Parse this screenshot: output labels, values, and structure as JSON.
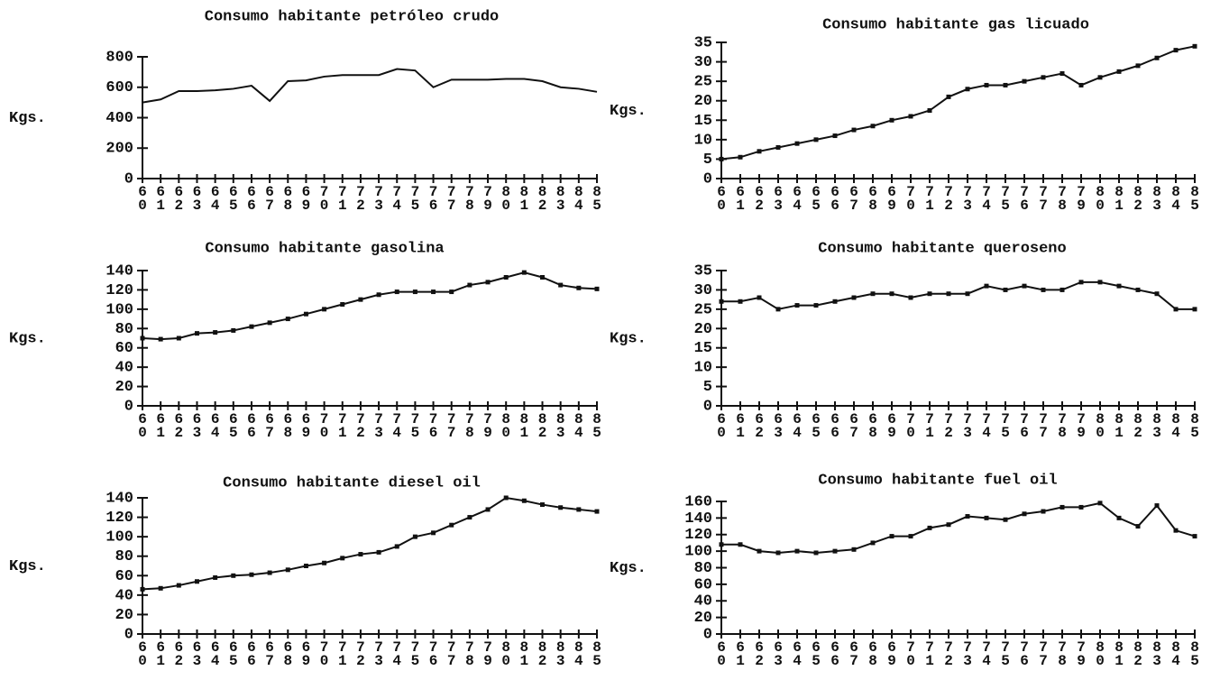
{
  "chart_data": [
    {
      "type": "line",
      "title": "Consumo habitante petróleo crudo",
      "ylabel": "Kgs.",
      "color": "#111111",
      "categories": [
        "60",
        "61",
        "62",
        "63",
        "64",
        "65",
        "66",
        "67",
        "68",
        "69",
        "70",
        "71",
        "72",
        "73",
        "74",
        "75",
        "76",
        "77",
        "78",
        "79",
        "80",
        "81",
        "82",
        "83",
        "84",
        "85"
      ],
      "values": [
        500,
        520,
        575,
        575,
        580,
        590,
        610,
        510,
        640,
        645,
        670,
        680,
        680,
        680,
        720,
        710,
        600,
        650,
        650,
        650,
        655,
        655,
        640,
        600,
        590,
        570
      ],
      "markers": false,
      "ylim": [
        0,
        800
      ],
      "yticks": [
        0,
        200,
        400,
        600,
        800
      ]
    },
    {
      "type": "line",
      "title": "Consumo habitante gas licuado",
      "ylabel": "Kgs.",
      "color": "#111111",
      "categories": [
        "60",
        "61",
        "62",
        "63",
        "64",
        "65",
        "66",
        "67",
        "68",
        "69",
        "70",
        "71",
        "72",
        "73",
        "74",
        "75",
        "76",
        "77",
        "78",
        "79",
        "80",
        "81",
        "82",
        "83",
        "84",
        "85"
      ],
      "values": [
        5,
        5.5,
        7,
        8,
        9,
        10,
        11,
        12.5,
        13.5,
        15,
        16,
        17.5,
        21,
        23,
        24,
        24,
        25,
        26,
        27,
        24,
        26,
        27.5,
        29,
        31,
        33,
        34
      ],
      "markers": true,
      "ylim": [
        0,
        35
      ],
      "yticks": [
        0,
        5,
        10,
        15,
        20,
        25,
        30,
        35
      ]
    },
    {
      "type": "line",
      "title": "Consumo habitante gasolina",
      "ylabel": "Kgs.",
      "color": "#111111",
      "categories": [
        "60",
        "61",
        "62",
        "63",
        "64",
        "65",
        "66",
        "67",
        "68",
        "69",
        "70",
        "71",
        "72",
        "73",
        "74",
        "75",
        "76",
        "77",
        "78",
        "79",
        "80",
        "81",
        "82",
        "83",
        "84",
        "85"
      ],
      "values": [
        70,
        69,
        70,
        75,
        76,
        78,
        82,
        86,
        90,
        95,
        100,
        105,
        110,
        115,
        118,
        118,
        118,
        118,
        125,
        128,
        133,
        138,
        133,
        125,
        122,
        121
      ],
      "markers": true,
      "ylim": [
        0,
        140
      ],
      "yticks": [
        0,
        20,
        40,
        60,
        80,
        100,
        120,
        140
      ]
    },
    {
      "type": "line",
      "title": "Consumo habitante queroseno",
      "ylabel": "Kgs.",
      "color": "#111111",
      "categories": [
        "60",
        "61",
        "62",
        "63",
        "64",
        "65",
        "66",
        "67",
        "68",
        "69",
        "70",
        "71",
        "72",
        "73",
        "74",
        "75",
        "76",
        "77",
        "78",
        "79",
        "80",
        "81",
        "82",
        "83",
        "84",
        "85"
      ],
      "values": [
        27,
        27,
        28,
        25,
        26,
        26,
        27,
        28,
        29,
        29,
        28,
        29,
        29,
        29,
        31,
        30,
        31,
        30,
        30,
        32,
        32,
        31,
        30,
        29,
        25,
        25
      ],
      "markers": true,
      "ylim": [
        0,
        35
      ],
      "yticks": [
        0,
        5,
        10,
        15,
        20,
        25,
        30,
        35
      ]
    },
    {
      "type": "line",
      "title": "Consumo habitante diesel oil",
      "ylabel": "Kgs.",
      "color": "#111111",
      "categories": [
        "60",
        "61",
        "62",
        "63",
        "64",
        "65",
        "66",
        "67",
        "68",
        "69",
        "70",
        "71",
        "72",
        "73",
        "74",
        "75",
        "76",
        "77",
        "78",
        "79",
        "80",
        "81",
        "82",
        "83",
        "84",
        "85"
      ],
      "values": [
        46,
        47,
        50,
        54,
        58,
        60,
        61,
        63,
        66,
        70,
        73,
        78,
        82,
        84,
        90,
        100,
        104,
        112,
        120,
        128,
        140,
        137,
        133,
        130,
        128,
        126
      ],
      "markers": true,
      "ylim": [
        0,
        140
      ],
      "yticks": [
        0,
        20,
        40,
        60,
        80,
        100,
        120,
        140
      ]
    },
    {
      "type": "line",
      "title": "Consumo habitante fuel oil",
      "ylabel": "Kgs.",
      "color": "#111111",
      "categories": [
        "60",
        "61",
        "62",
        "63",
        "64",
        "65",
        "66",
        "67",
        "68",
        "69",
        "70",
        "71",
        "72",
        "73",
        "74",
        "75",
        "76",
        "77",
        "78",
        "79",
        "80",
        "81",
        "82",
        "83",
        "84",
        "85"
      ],
      "values": [
        108,
        108,
        100,
        98,
        100,
        98,
        100,
        102,
        110,
        118,
        118,
        128,
        132,
        142,
        140,
        138,
        145,
        148,
        153,
        153,
        158,
        140,
        130,
        155,
        125,
        118
      ],
      "markers": true,
      "ylim": [
        0,
        160
      ],
      "yticks": [
        0,
        20,
        40,
        60,
        80,
        100,
        120,
        140,
        160
      ]
    }
  ]
}
